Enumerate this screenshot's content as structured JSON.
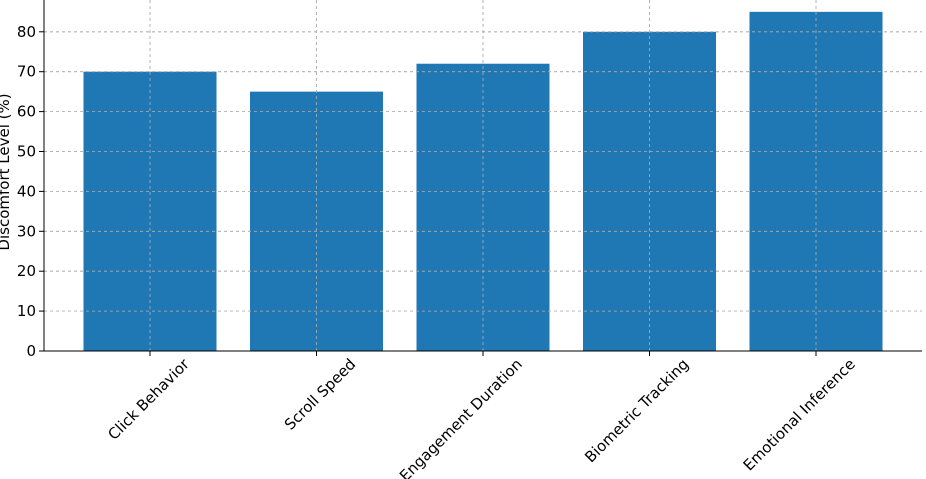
{
  "chart_data": {
    "type": "bar",
    "title": "",
    "xlabel": "",
    "ylabel": "Discomfort Level (%)",
    "categories": [
      "Click Behavior",
      "Scroll Speed",
      "Engagement Duration",
      "Biometric Tracking",
      "Emotional Inference"
    ],
    "values": [
      70,
      65,
      72,
      80,
      85
    ],
    "ylim": [
      0,
      88
    ],
    "yticks": [
      0,
      10,
      20,
      30,
      40,
      50,
      60,
      70,
      80
    ],
    "grid": true,
    "bar_color": "#1f77b4",
    "grid_color": "#b0b0b0"
  }
}
